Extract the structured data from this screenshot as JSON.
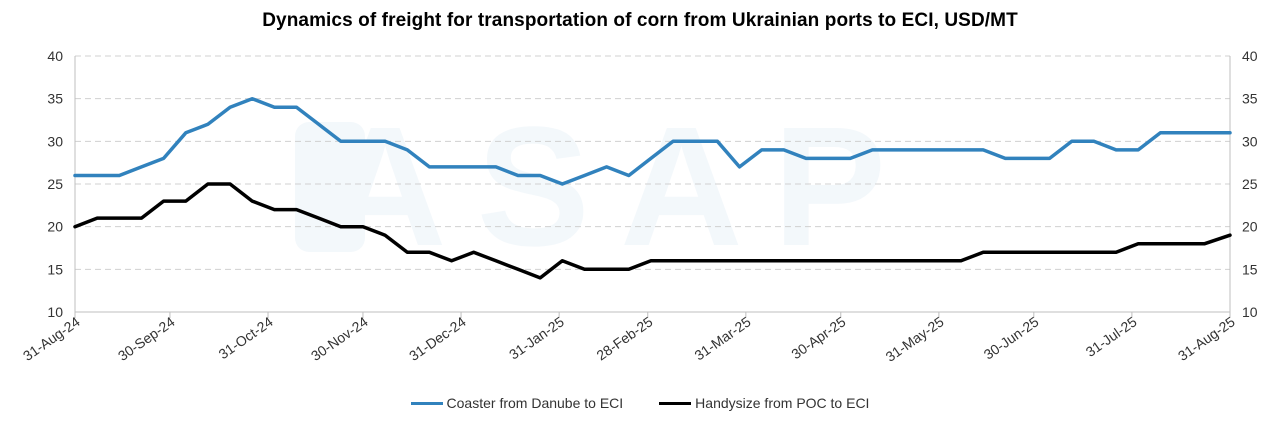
{
  "chart_data": {
    "type": "line",
    "title": "Dynamics of freight for transportation of corn from Ukrainian ports to ECI, USD/MT",
    "xlabel": "",
    "ylabel": "",
    "ylim": [
      10,
      40
    ],
    "yticks": [
      10,
      15,
      20,
      25,
      30,
      35,
      40
    ],
    "y_axis_labels_both_sides": true,
    "grid": "horizontal dashed",
    "legend_position": "bottom",
    "x_tick_labels": [
      "31-Aug-24",
      "30-Sep-24",
      "31-Oct-24",
      "30-Nov-24",
      "31-Dec-24",
      "31-Jan-25",
      "28-Feb-25",
      "31-Mar-25",
      "30-Apr-25",
      "31-May-25",
      "30-Jun-25",
      "31-Jul-25",
      "31-Aug-25"
    ],
    "x_tick_dates": [
      "2024-08-31",
      "2024-09-30",
      "2024-10-31",
      "2024-11-30",
      "2024-12-31",
      "2025-01-31",
      "2025-02-28",
      "2025-03-31",
      "2025-04-30",
      "2025-05-31",
      "2025-06-30",
      "2025-07-31",
      "2025-08-31"
    ],
    "x_range": [
      "2024-08-31",
      "2025-08-31"
    ],
    "series": [
      {
        "name": "Coaster from Danube to ECI",
        "color": "#3182BD",
        "points": [
          [
            "2024-08-31",
            26
          ],
          [
            "2024-09-07",
            26
          ],
          [
            "2024-09-14",
            26
          ],
          [
            "2024-09-21",
            27
          ],
          [
            "2024-09-28",
            28
          ],
          [
            "2024-10-05",
            31
          ],
          [
            "2024-10-12",
            32
          ],
          [
            "2024-10-19",
            34
          ],
          [
            "2024-10-26",
            35
          ],
          [
            "2024-11-02",
            34
          ],
          [
            "2024-11-09",
            34
          ],
          [
            "2024-11-16",
            32
          ],
          [
            "2024-11-23",
            30
          ],
          [
            "2024-11-30",
            30
          ],
          [
            "2024-12-07",
            30
          ],
          [
            "2024-12-14",
            29
          ],
          [
            "2024-12-21",
            27
          ],
          [
            "2024-12-28",
            27
          ],
          [
            "2025-01-04",
            27
          ],
          [
            "2025-01-11",
            27
          ],
          [
            "2025-01-18",
            26
          ],
          [
            "2025-01-25",
            26
          ],
          [
            "2025-02-01",
            25
          ],
          [
            "2025-02-08",
            26
          ],
          [
            "2025-02-15",
            27
          ],
          [
            "2025-02-22",
            26
          ],
          [
            "2025-03-01",
            28
          ],
          [
            "2025-03-08",
            30
          ],
          [
            "2025-03-15",
            30
          ],
          [
            "2025-03-22",
            30
          ],
          [
            "2025-03-29",
            27
          ],
          [
            "2025-04-05",
            29
          ],
          [
            "2025-04-12",
            29
          ],
          [
            "2025-04-19",
            28
          ],
          [
            "2025-04-26",
            28
          ],
          [
            "2025-05-03",
            28
          ],
          [
            "2025-05-10",
            29
          ],
          [
            "2025-05-17",
            29
          ],
          [
            "2025-05-24",
            29
          ],
          [
            "2025-05-31",
            29
          ],
          [
            "2025-06-07",
            29
          ],
          [
            "2025-06-14",
            29
          ],
          [
            "2025-06-21",
            28
          ],
          [
            "2025-06-28",
            28
          ],
          [
            "2025-07-05",
            28
          ],
          [
            "2025-07-12",
            30
          ],
          [
            "2025-07-19",
            30
          ],
          [
            "2025-07-26",
            29
          ],
          [
            "2025-08-02",
            29
          ],
          [
            "2025-08-09",
            31
          ],
          [
            "2025-08-16",
            31
          ],
          [
            "2025-08-23",
            31
          ],
          [
            "2025-08-31",
            31
          ]
        ]
      },
      {
        "name": "Handysize from POC to ECI",
        "color": "#000000",
        "points": [
          [
            "2024-08-31",
            20
          ],
          [
            "2024-09-07",
            21
          ],
          [
            "2024-09-14",
            21
          ],
          [
            "2024-09-21",
            21
          ],
          [
            "2024-09-28",
            23
          ],
          [
            "2024-10-05",
            23
          ],
          [
            "2024-10-12",
            25
          ],
          [
            "2024-10-19",
            25
          ],
          [
            "2024-10-26",
            23
          ],
          [
            "2024-11-02",
            22
          ],
          [
            "2024-11-09",
            22
          ],
          [
            "2024-11-16",
            21
          ],
          [
            "2024-11-23",
            20
          ],
          [
            "2024-11-30",
            20
          ],
          [
            "2024-12-07",
            19
          ],
          [
            "2024-12-14",
            17
          ],
          [
            "2024-12-21",
            17
          ],
          [
            "2024-12-28",
            16
          ],
          [
            "2025-01-04",
            17
          ],
          [
            "2025-01-11",
            16
          ],
          [
            "2025-01-18",
            15
          ],
          [
            "2025-01-25",
            14
          ],
          [
            "2025-02-01",
            16
          ],
          [
            "2025-02-08",
            15
          ],
          [
            "2025-02-15",
            15
          ],
          [
            "2025-02-22",
            15
          ],
          [
            "2025-03-01",
            16
          ],
          [
            "2025-03-08",
            16
          ],
          [
            "2025-03-15",
            16
          ],
          [
            "2025-03-22",
            16
          ],
          [
            "2025-03-29",
            16
          ],
          [
            "2025-04-05",
            16
          ],
          [
            "2025-04-12",
            16
          ],
          [
            "2025-04-19",
            16
          ],
          [
            "2025-04-26",
            16
          ],
          [
            "2025-05-03",
            16
          ],
          [
            "2025-05-10",
            16
          ],
          [
            "2025-05-17",
            16
          ],
          [
            "2025-05-24",
            16
          ],
          [
            "2025-05-31",
            16
          ],
          [
            "2025-06-07",
            16
          ],
          [
            "2025-06-14",
            17
          ],
          [
            "2025-06-21",
            17
          ],
          [
            "2025-06-28",
            17
          ],
          [
            "2025-07-05",
            17
          ],
          [
            "2025-07-12",
            17
          ],
          [
            "2025-07-19",
            17
          ],
          [
            "2025-07-26",
            17
          ],
          [
            "2025-08-02",
            18
          ],
          [
            "2025-08-09",
            18
          ],
          [
            "2025-08-16",
            18
          ],
          [
            "2025-08-23",
            18
          ],
          [
            "2025-08-31",
            19
          ]
        ]
      }
    ]
  }
}
